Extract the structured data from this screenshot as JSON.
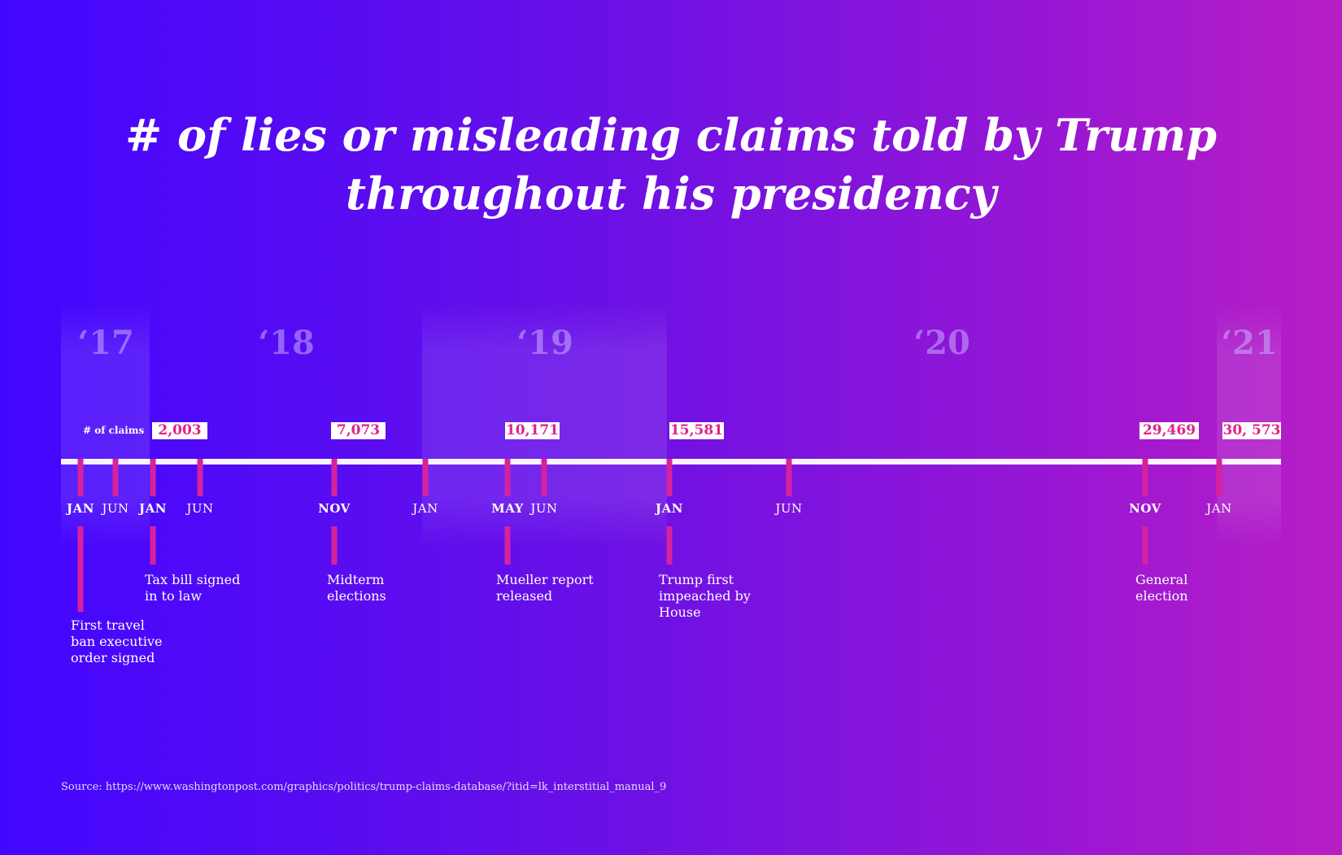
{
  "title": "# of lies or misleading claims told by Trump throughout his presidency",
  "years": [
    "‘17",
    "‘18",
    "‘19",
    "‘20",
    "‘21"
  ],
  "claims_label": "# of claims",
  "months": [
    "JAN",
    "JUN",
    "JAN",
    "JUN",
    "NOV",
    "JAN",
    "MAY",
    "JUN",
    "JAN",
    "JUN",
    "NOV",
    "JAN"
  ],
  "counts": [
    "2,003",
    "7,073",
    "10,171",
    "15,581",
    "29,469",
    "30, 573"
  ],
  "events": [
    "First travel\nban executive\norder signed",
    "Tax bill signed\nin to law",
    "Midterm\nelections",
    "Mueller report\nreleased",
    "Trump first\nimpeached by\nHouse",
    "General\nelection"
  ],
  "source": "Source: https://www.washingtonpost.com/graphics/politics/trump-claims-database/?itid=lk_interstitial_manual_9",
  "colors": {
    "accent": "#d6239d",
    "count_text": "#e3208e",
    "bg_left": "#4206ff",
    "bg_right": "#b81ec4"
  }
}
